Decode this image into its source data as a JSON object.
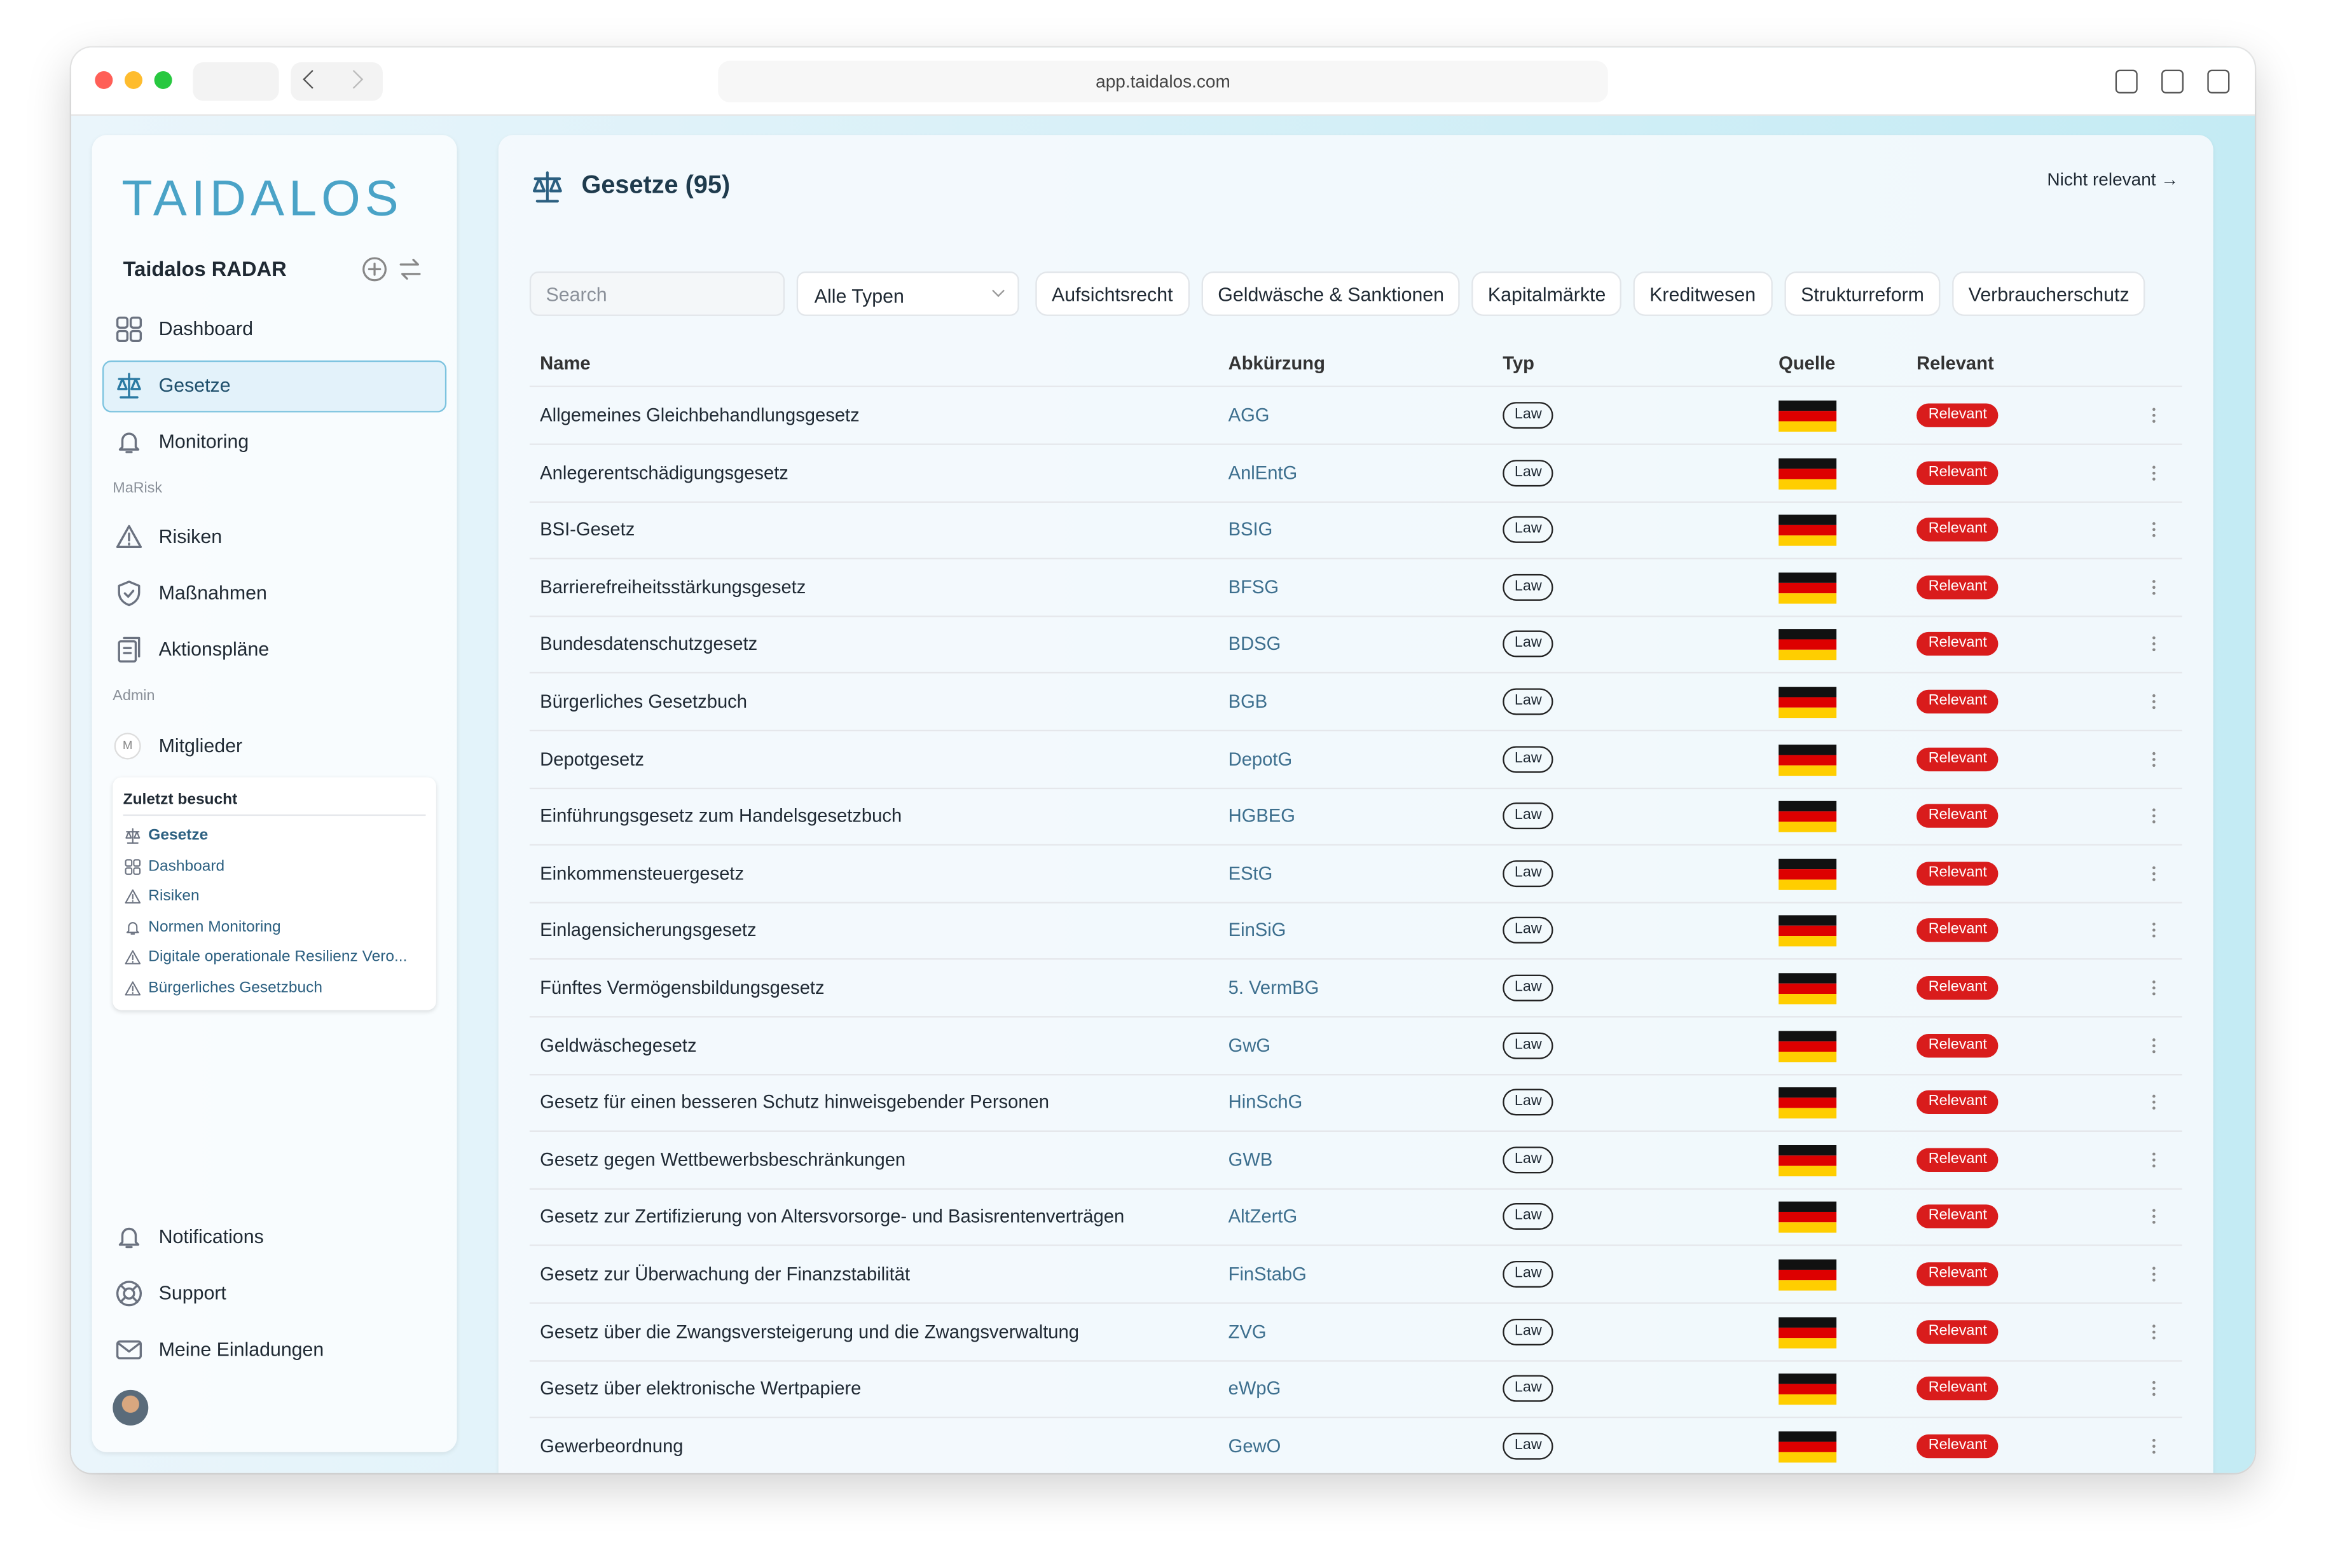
{
  "browser": {
    "url": "app.taidalos.com"
  },
  "sidebar": {
    "logo": "TAIDALOS",
    "workspace": "Taidalos RADAR",
    "nav": [
      {
        "label": "Dashboard"
      },
      {
        "label": "Gesetze",
        "active": true
      },
      {
        "label": "Monitoring"
      }
    ],
    "marisk": {
      "title": "MaRisk",
      "items": [
        "Risiken",
        "Maßnahmen",
        "Aktionspläne"
      ]
    },
    "admin": {
      "title": "Admin",
      "items": [
        "Mitglieder"
      ],
      "avatar": "M"
    },
    "recent": {
      "title": "Zuletzt besucht",
      "items": [
        "Gesetze",
        "Dashboard",
        "Risiken",
        "Normen Monitoring",
        "Digitale operationale Resilienz Vero...",
        "Bürgerliches Gesetzbuch"
      ]
    },
    "footer": [
      "Notifications",
      "Support",
      "Meine Einladungen"
    ]
  },
  "main": {
    "title": "Gesetze (95)",
    "link": "Nicht relevant →",
    "search": "Search",
    "type_filter": "Alle Typen",
    "filters": [
      "Aufsichtsrecht",
      "Geldwäsche & Sanktionen",
      "Kapitalmärkte",
      "Kreditwesen",
      "Strukturreform",
      "Verbraucherschutz"
    ],
    "table": {
      "columns": [
        "Name",
        "Abkürzung",
        "Typ",
        "Quelle",
        "Relevant"
      ],
      "rows": [
        [
          "Allgemeines Gleichbehandlungsgesetz",
          "AGG",
          "Law",
          "Relevant"
        ],
        [
          "Anlegerentschädigungsgesetz",
          "AnlEntG",
          "Law",
          "Relevant"
        ],
        [
          "BSI-Gesetz",
          "BSIG",
          "Law",
          "Relevant"
        ],
        [
          "Barrierefreiheitsstärkungsgesetz",
          "BFSG",
          "Law",
          "Relevant"
        ],
        [
          "Bundesdatenschutzgesetz",
          "BDSG",
          "Law",
          "Relevant"
        ],
        [
          "Bürgerliches Gesetzbuch",
          "BGB",
          "Law",
          "Relevant"
        ],
        [
          "Depotgesetz",
          "DepotG",
          "Law",
          "Relevant"
        ],
        [
          "Einführungsgesetz zum Handelsgesetzbuch",
          "HGBEG",
          "Law",
          "Relevant"
        ],
        [
          "Einkommensteuergesetz",
          "EStG",
          "Law",
          "Relevant"
        ],
        [
          "Einlagensicherungsgesetz",
          "EinSiG",
          "Law",
          "Relevant"
        ],
        [
          "Fünftes Vermögensbildungsgesetz",
          "5. VermBG",
          "Law",
          "Relevant"
        ],
        [
          "Geldwäschegesetz",
          "GwG",
          "Law",
          "Relevant"
        ],
        [
          "Gesetz für einen besseren Schutz hinweisgebender Personen",
          "HinSchG",
          "Law",
          "Relevant"
        ],
        [
          "Gesetz gegen Wettbewerbsbeschränkungen",
          "GWB",
          "Law",
          "Relevant"
        ],
        [
          "Gesetz zur Zertifizierung von Altersvorsorge- und Basisrentenverträgen",
          "AltZertG",
          "Law",
          "Relevant"
        ],
        [
          "Gesetz zur Überwachung der Finanzstabilität",
          "FinStabG",
          "Law",
          "Relevant"
        ],
        [
          "Gesetz über die Zwangsversteigerung und die Zwangsverwaltung",
          "ZVG",
          "Law",
          "Relevant"
        ],
        [
          "Gesetz über elektronische Wertpapiere",
          "eWpG",
          "Law",
          "Relevant"
        ],
        [
          "Gewerbeordnung",
          "GewO",
          "Law",
          "Relevant"
        ]
      ]
    }
  }
}
